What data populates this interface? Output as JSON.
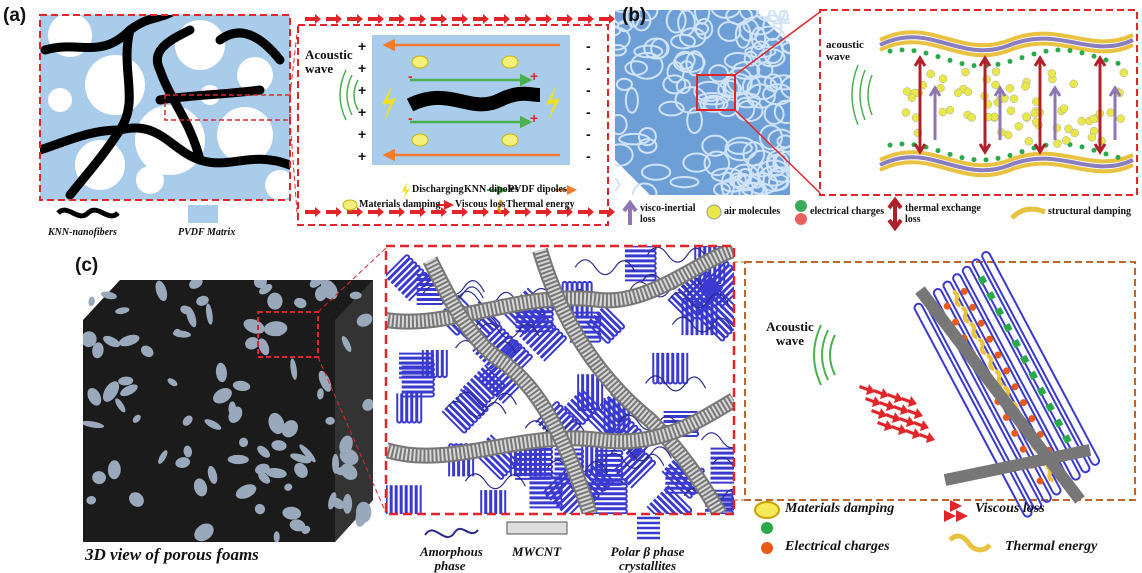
{
  "panel_a": {
    "label": "(a)",
    "acoustic_wave": "Acoustic wave",
    "signs": {
      "plus": "+",
      "minus": "-"
    },
    "legend": {
      "knn_nanofibers": "KNN-nanofibers",
      "pvdf_matrix": "PVDF Matrix",
      "discharging": "Discharging",
      "knn_dipoles": "KNN dipoles",
      "pvdf_dipoles": "PVDF dipoles",
      "materials_damping": "Materials damping",
      "viscous_loss": "Viscous loss",
      "thermal_energy": "Thermal energy"
    }
  },
  "panel_b": {
    "label": "(b)",
    "acoustic_wave": "acoustic wave",
    "legend": {
      "visco_inertial_loss": "visco-inertial loss",
      "air_molecules": "air molecules",
      "electrical_charges": "electrical charges",
      "thermal_exchange_loss": "thermal exchange loss",
      "structural_damping": "structural damping"
    }
  },
  "panel_c": {
    "label": "(c)",
    "caption": "3D view of porous foams",
    "acoustic_wave": "Acoustic wave",
    "components": {
      "amorphous_phase": "Amorphous phase",
      "mwcnt": "MWCNT",
      "crystallites": "Polar β phase crystallites"
    },
    "legend": {
      "materials_damping": "Materials damping",
      "viscous_loss": "Viscous loss",
      "electrical_charges": "Electrical charges",
      "thermal_energy": "Thermal energy"
    }
  }
}
